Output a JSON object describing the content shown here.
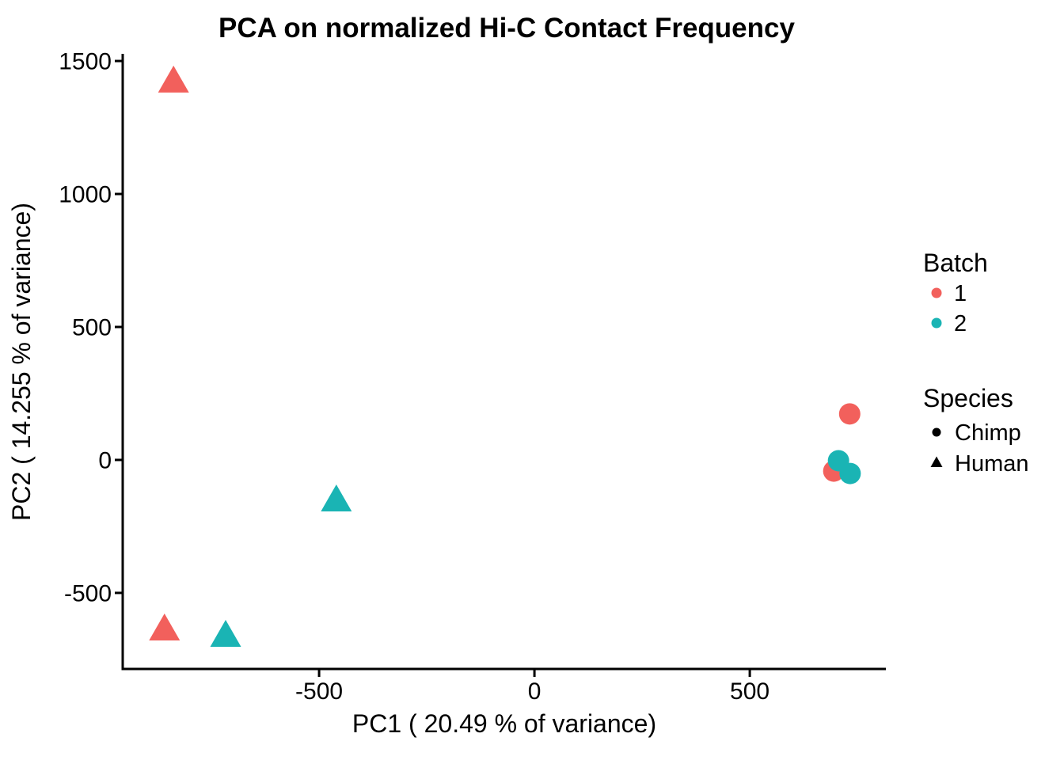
{
  "chart_data": {
    "type": "scatter",
    "title": "PCA on normalized Hi-C Contact Frequency",
    "xlabel": "PC1 ( 20.49 % of variance)",
    "ylabel": "PC2 ( 14.255 % of variance)",
    "xlim": [
      -956,
      816
    ],
    "ylim": [
      -786,
      1521
    ],
    "xticks": [
      -500,
      0,
      500
    ],
    "yticks": [
      -500,
      0,
      500,
      1000,
      1500
    ],
    "grid": false,
    "background": "#ffffff",
    "axis_color": "#000000",
    "legend_position": "right",
    "colors": {
      "batch_1": "#F2605C",
      "batch_2": "#1AB4B4",
      "species_marker": "#000000"
    },
    "series": [
      {
        "name": "Chimp batch 1",
        "species": "Chimp",
        "batch": "1",
        "marker": "circle",
        "color": "#F2605C",
        "points": [
          [
            732,
            173
          ],
          [
            695,
            -42
          ]
        ]
      },
      {
        "name": "Chimp batch 2",
        "species": "Chimp",
        "batch": "2",
        "marker": "circle",
        "color": "#1AB4B4",
        "points": [
          [
            706,
            -3
          ],
          [
            733,
            -51
          ]
        ]
      },
      {
        "name": "Human batch 1",
        "species": "Human",
        "batch": "1",
        "marker": "triangle",
        "color": "#F2605C",
        "points": [
          [
            -838,
            1423
          ],
          [
            -859,
            -637
          ]
        ]
      },
      {
        "name": "Human batch 2",
        "species": "Human",
        "batch": "2",
        "marker": "triangle",
        "color": "#1AB4B4",
        "points": [
          [
            -460,
            -152
          ],
          [
            -717,
            -661
          ]
        ]
      }
    ],
    "legend": {
      "batch": {
        "title": "Batch",
        "items": [
          {
            "label": "1",
            "color": "#F2605C"
          },
          {
            "label": "2",
            "color": "#1AB4B4"
          }
        ]
      },
      "species": {
        "title": "Species",
        "items": [
          {
            "label": "Chimp",
            "marker": "circle"
          },
          {
            "label": "Human",
            "marker": "triangle"
          }
        ]
      }
    }
  }
}
